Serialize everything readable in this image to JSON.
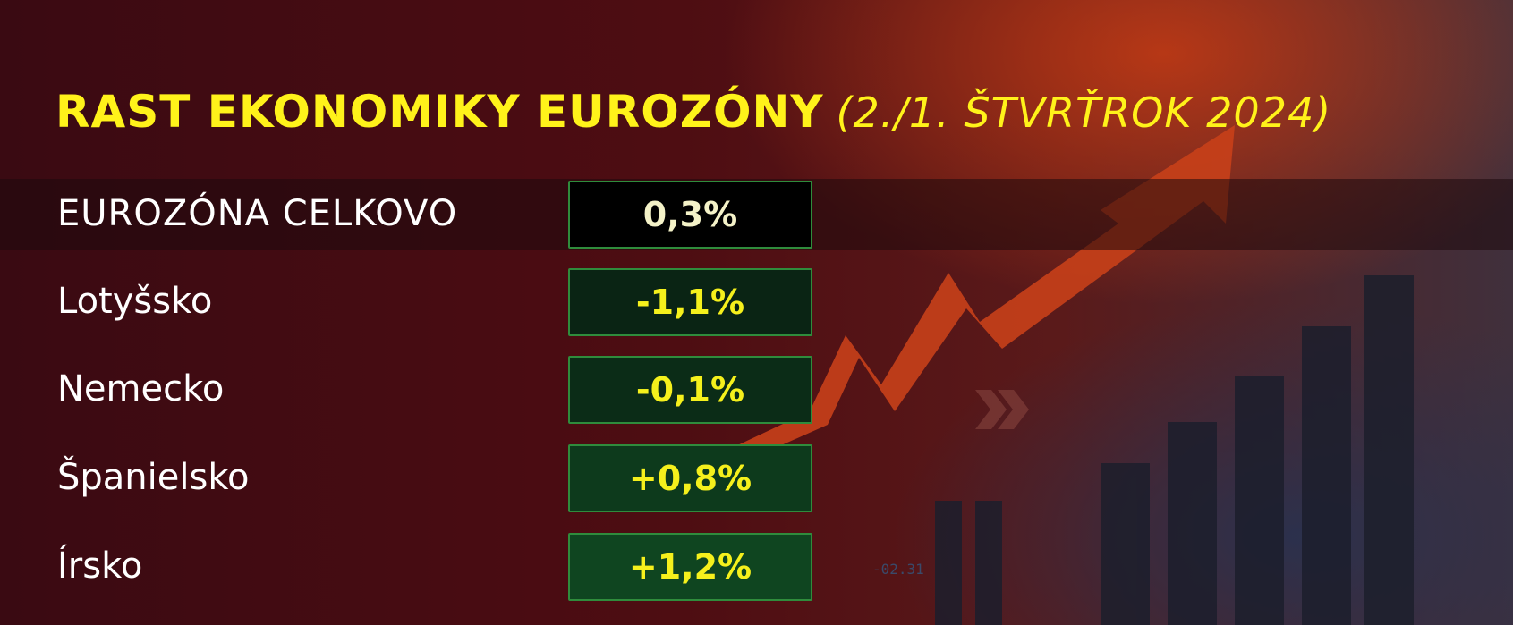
{
  "title": {
    "main": "RAST EKONOMIKY EUROZÓNY",
    "sub": "(2./1. ŠTVRŤROK 2024)"
  },
  "rows": [
    {
      "label": "EUROZÓNA CELKOVO",
      "value": "0,3%"
    },
    {
      "label": "Lotyšsko",
      "value": "-1,1%"
    },
    {
      "label": "Nemecko",
      "value": "-0,1%"
    },
    {
      "label": "Španielsko",
      "value": "+0,8%"
    },
    {
      "label": "Írsko",
      "value": "+1,2%"
    }
  ],
  "background": {
    "ticker_text": "-02.31"
  },
  "colors": {
    "title": "#fff21a",
    "value": "#f5f01c",
    "box_border": "#2f8c3c",
    "arrow": "#c8401a"
  }
}
